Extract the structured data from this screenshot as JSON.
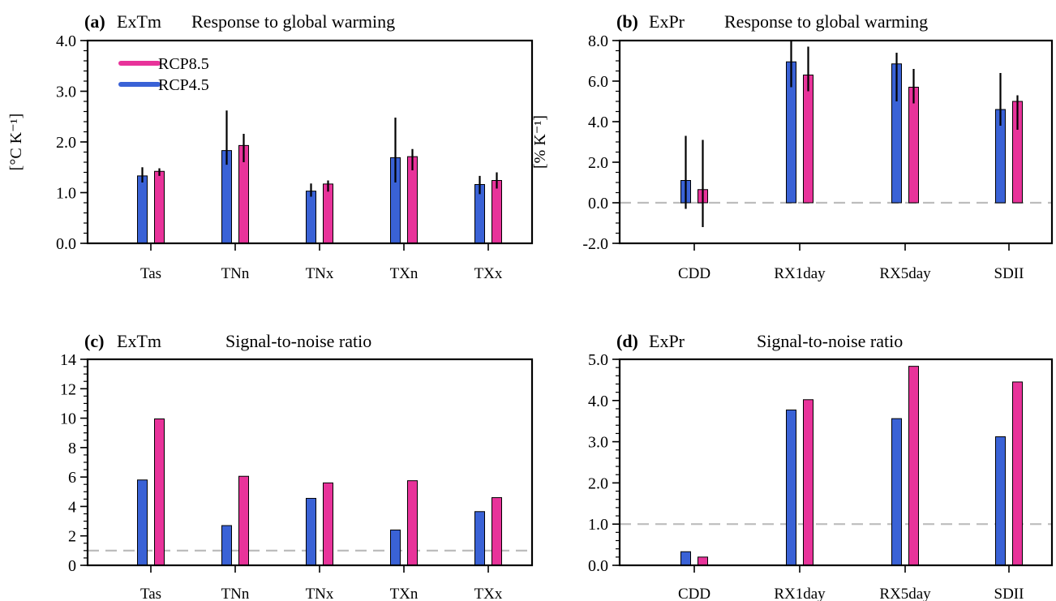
{
  "colors": {
    "rcp85": "#e8339a",
    "rcp45": "#3a62d6",
    "ref_line": "#bdbdbd"
  },
  "legend": {
    "rcp85": "RCP8.5",
    "rcp45": "RCP4.5"
  },
  "chart_data": [
    {
      "type": "bar",
      "id": "a",
      "tag": "(a)",
      "var": "ExTm",
      "title": "Response to global warming",
      "ylabel": "[°C K⁻¹]",
      "ylim": [
        0,
        4
      ],
      "yticks": [
        "0.0",
        "1.0",
        "2.0",
        "3.0",
        "4.0"
      ],
      "ytick_values": [
        0,
        1,
        2,
        3,
        4
      ],
      "minor_step": 0.2,
      "categories": [
        "Tas",
        "TNn",
        "TNx",
        "TXn",
        "TXx"
      ],
      "series": [
        {
          "name": "RCP4.5",
          "values": [
            1.33,
            1.83,
            1.03,
            1.69,
            1.16
          ],
          "err_low": [
            1.2,
            1.55,
            0.92,
            1.2,
            0.97
          ],
          "err_high": [
            1.5,
            2.62,
            1.18,
            2.48,
            1.33
          ]
        },
        {
          "name": "RCP8.5",
          "values": [
            1.42,
            1.93,
            1.17,
            1.71,
            1.24
          ],
          "err_low": [
            1.33,
            1.6,
            1.02,
            1.44,
            1.08
          ],
          "err_high": [
            1.48,
            2.16,
            1.24,
            1.86,
            1.4
          ]
        }
      ],
      "ref_line": null,
      "legend": true
    },
    {
      "type": "bar",
      "id": "b",
      "tag": "(b)",
      "var": "ExPr",
      "title": "Response to global warming",
      "ylabel": "[% K⁻¹]",
      "ylim": [
        -2,
        8
      ],
      "yticks": [
        "-2.0",
        "0.0",
        "2.0",
        "4.0",
        "6.0",
        "8.0"
      ],
      "ytick_values": [
        -2,
        0,
        2,
        4,
        6,
        8
      ],
      "minor_step": 0.5,
      "categories": [
        "CDD",
        "RX1day",
        "RX5day",
        "SDII"
      ],
      "series": [
        {
          "name": "RCP4.5",
          "values": [
            1.1,
            6.95,
            6.85,
            4.6
          ],
          "err_low": [
            -0.3,
            5.7,
            5.0,
            3.8
          ],
          "err_high": [
            3.3,
            8.0,
            7.4,
            6.4
          ]
        },
        {
          "name": "RCP8.5",
          "values": [
            0.65,
            6.3,
            5.7,
            5.0
          ],
          "err_low": [
            -1.2,
            5.5,
            4.9,
            3.6
          ],
          "err_high": [
            3.1,
            7.7,
            6.6,
            5.3
          ]
        }
      ],
      "ref_line": 0,
      "legend": false
    },
    {
      "type": "bar",
      "id": "c",
      "tag": "(c)",
      "var": "ExTm",
      "title": "Signal-to-noise ratio",
      "ylabel": "",
      "ylim": [
        0,
        14
      ],
      "yticks": [
        "0",
        "2",
        "4",
        "6",
        "8",
        "10",
        "12",
        "14"
      ],
      "ytick_values": [
        0,
        2,
        4,
        6,
        8,
        10,
        12,
        14
      ],
      "minor_step": 0.5,
      "categories": [
        "Tas",
        "TNn",
        "TNx",
        "TXn",
        "TXx"
      ],
      "series": [
        {
          "name": "RCP4.5",
          "values": [
            5.8,
            2.7,
            4.55,
            2.4,
            3.65
          ]
        },
        {
          "name": "RCP8.5",
          "values": [
            9.95,
            6.05,
            5.6,
            5.75,
            4.6
          ]
        }
      ],
      "ref_line": 1,
      "legend": false
    },
    {
      "type": "bar",
      "id": "d",
      "tag": "(d)",
      "var": "ExPr",
      "title": "Signal-to-noise ratio",
      "ylabel": "",
      "ylim": [
        0,
        5
      ],
      "yticks": [
        "0.0",
        "1.0",
        "2.0",
        "3.0",
        "4.0",
        "5.0"
      ],
      "ytick_values": [
        0,
        1,
        2,
        3,
        4,
        5
      ],
      "minor_step": 0.2,
      "categories": [
        "CDD",
        "RX1day",
        "RX5day",
        "SDII"
      ],
      "series": [
        {
          "name": "RCP4.5",
          "values": [
            0.33,
            3.77,
            3.56,
            3.12
          ]
        },
        {
          "name": "RCP8.5",
          "values": [
            0.2,
            4.02,
            4.83,
            4.45
          ]
        }
      ],
      "ref_line": 1,
      "legend": false
    }
  ]
}
